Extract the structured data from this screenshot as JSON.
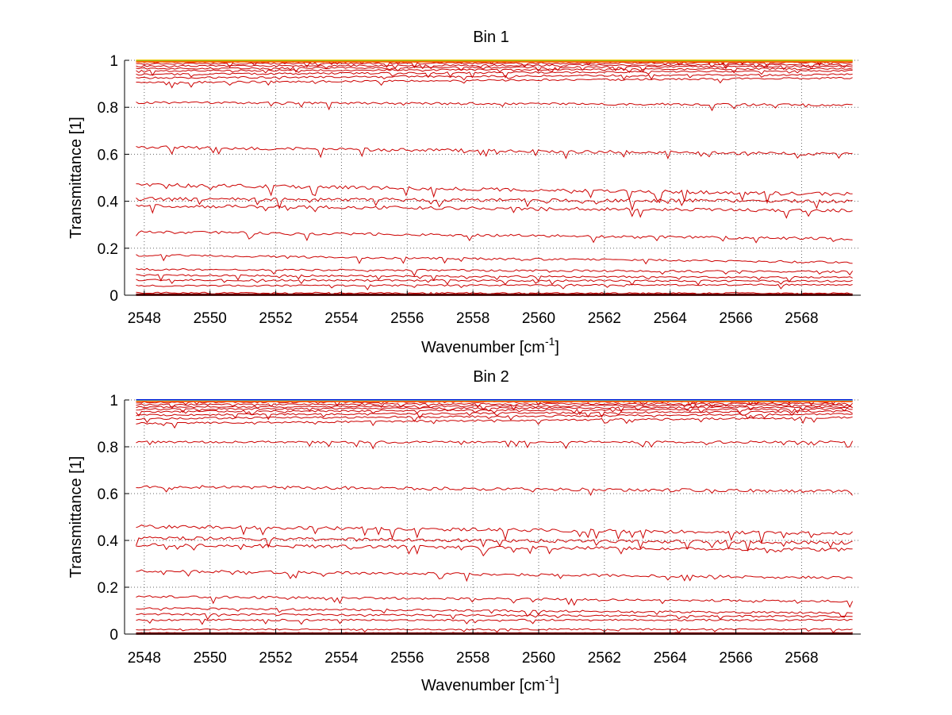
{
  "chart_data": [
    {
      "type": "line",
      "title": "Bin 1",
      "xlabel": "Wavenumber [cm",
      "xlabel_sup": "-1",
      "xlabel_end": "]",
      "ylabel": "Transmittance [1]",
      "xlim": [
        2547.4,
        2569.8
      ],
      "ylim": [
        0,
        1
      ],
      "xticks": [
        "2548",
        "2550",
        "2552",
        "2554",
        "2556",
        "2558",
        "2560",
        "2562",
        "2564",
        "2566",
        "2568"
      ],
      "yticks": [
        "0",
        "0.2",
        "0.4",
        "0.6",
        "0.8",
        "1"
      ],
      "grid": true,
      "colors": {
        "near_one": [
          "#ffcc00",
          "#66cc33",
          "#ff6600"
        ],
        "lines": "#cc0000"
      },
      "series_levels": [
        {
          "start": 0.998,
          "end": 0.998
        },
        {
          "start": 0.993,
          "end": 0.995
        },
        {
          "start": 0.985,
          "end": 0.99
        },
        {
          "start": 0.975,
          "end": 0.982
        },
        {
          "start": 0.965,
          "end": 0.975
        },
        {
          "start": 0.955,
          "end": 0.965
        },
        {
          "start": 0.94,
          "end": 0.955
        },
        {
          "start": 0.925,
          "end": 0.94
        },
        {
          "start": 0.905,
          "end": 0.925
        },
        {
          "start": 0.82,
          "end": 0.81
        },
        {
          "start": 0.63,
          "end": 0.6
        },
        {
          "start": 0.47,
          "end": 0.43
        },
        {
          "start": 0.41,
          "end": 0.4
        },
        {
          "start": 0.38,
          "end": 0.36
        },
        {
          "start": 0.27,
          "end": 0.24
        },
        {
          "start": 0.17,
          "end": 0.14
        },
        {
          "start": 0.11,
          "end": 0.1
        },
        {
          "start": 0.085,
          "end": 0.075
        },
        {
          "start": 0.065,
          "end": 0.06
        },
        {
          "start": 0.04,
          "end": 0.045
        },
        {
          "start": 0.01,
          "end": 0.008
        },
        {
          "start": 0.003,
          "end": 0.003
        }
      ]
    },
    {
      "type": "line",
      "title": "Bin 2",
      "xlabel": "Wavenumber [cm",
      "xlabel_sup": "-1",
      "xlabel_end": "]",
      "ylabel": "Transmittance [1]",
      "xlim": [
        2547.4,
        2569.8
      ],
      "ylim": [
        0,
        1
      ],
      "xticks": [
        "2548",
        "2550",
        "2552",
        "2554",
        "2556",
        "2558",
        "2560",
        "2562",
        "2564",
        "2566",
        "2568"
      ],
      "yticks": [
        "0",
        "0.2",
        "0.4",
        "0.6",
        "0.8",
        "1"
      ],
      "grid": true,
      "colors": {
        "near_one": [
          "#0000cc",
          "#00aaff",
          "#ff6600"
        ],
        "lines": "#cc0000"
      },
      "series_levels": [
        {
          "start": 0.998,
          "end": 0.998
        },
        {
          "start": 0.99,
          "end": 0.993
        },
        {
          "start": 0.98,
          "end": 0.985
        },
        {
          "start": 0.97,
          "end": 0.978
        },
        {
          "start": 0.96,
          "end": 0.97
        },
        {
          "start": 0.95,
          "end": 0.962
        },
        {
          "start": 0.935,
          "end": 0.952
        },
        {
          "start": 0.92,
          "end": 0.94
        },
        {
          "start": 0.9,
          "end": 0.925
        },
        {
          "start": 0.82,
          "end": 0.82
        },
        {
          "start": 0.63,
          "end": 0.61
        },
        {
          "start": 0.46,
          "end": 0.43
        },
        {
          "start": 0.41,
          "end": 0.39
        },
        {
          "start": 0.38,
          "end": 0.36
        },
        {
          "start": 0.27,
          "end": 0.24
        },
        {
          "start": 0.16,
          "end": 0.14
        },
        {
          "start": 0.11,
          "end": 0.09
        },
        {
          "start": 0.085,
          "end": 0.075
        },
        {
          "start": 0.06,
          "end": 0.06
        },
        {
          "start": 0.02,
          "end": 0.02
        },
        {
          "start": 0.004,
          "end": 0.004
        }
      ]
    }
  ]
}
